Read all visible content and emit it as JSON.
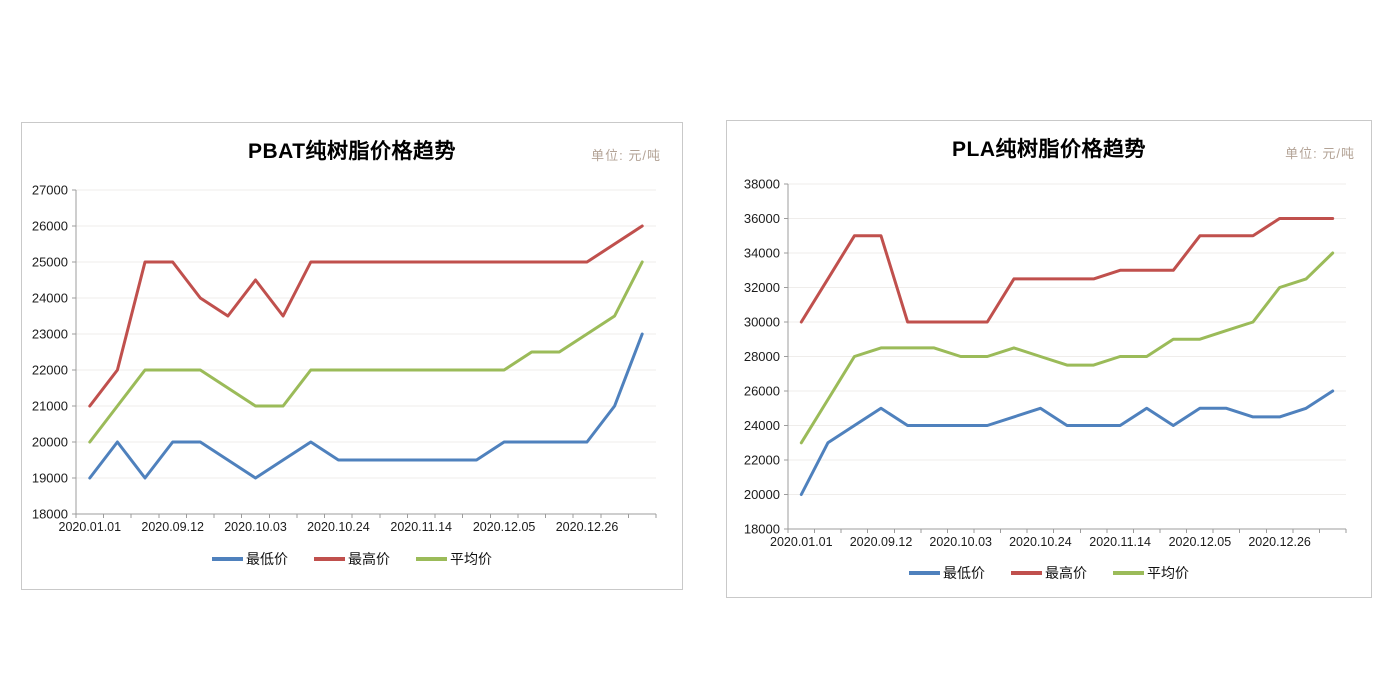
{
  "chart_data": [
    {
      "type": "line",
      "title": "PBAT纯树脂价格趋势",
      "unit": "单位: 元/吨",
      "xlabel": "",
      "ylabel": "",
      "ylim": [
        18000,
        27000
      ],
      "y_step": 1000,
      "grid": true,
      "legend_position": "bottom",
      "n_points": 21,
      "categories": [
        "2020.01.01",
        "",
        "",
        "2020.09.12",
        "",
        "",
        "2020.10.03",
        "",
        "",
        "2020.10.24",
        "",
        "",
        "2020.11.14",
        "",
        "",
        "2020.12.05",
        "",
        "",
        "2020.12.26",
        "",
        ""
      ],
      "x_axis_labels_shown": [
        "2020.01.01",
        "2020.09.12",
        "2020.10.03",
        "2020.10.24",
        "2020.11.14",
        "2020.12.05",
        "2020.12.26"
      ],
      "series": [
        {
          "name": "最低价",
          "color": "#4F81BD",
          "values": [
            19000,
            20000,
            19000,
            20000,
            20000,
            19500,
            19000,
            19500,
            20000,
            19500,
            19500,
            19500,
            19500,
            19500,
            19500,
            20000,
            20000,
            20000,
            20000,
            21000,
            23000
          ]
        },
        {
          "name": "最高价",
          "color": "#C0504D",
          "values": [
            21000,
            22000,
            25000,
            25000,
            24000,
            23500,
            24500,
            23500,
            25000,
            25000,
            25000,
            25000,
            25000,
            25000,
            25000,
            25000,
            25000,
            25000,
            25000,
            25500,
            26000
          ]
        },
        {
          "name": "平均价",
          "color": "#9BBB59",
          "values": [
            20000,
            21000,
            22000,
            22000,
            22000,
            21500,
            21000,
            21000,
            22000,
            22000,
            22000,
            22000,
            22000,
            22000,
            22000,
            22000,
            22500,
            22500,
            23000,
            23500,
            25000
          ]
        }
      ]
    },
    {
      "type": "line",
      "title": "PLA纯树脂价格趋势",
      "unit": "单位: 元/吨",
      "xlabel": "",
      "ylabel": "",
      "ylim": [
        18000,
        38000
      ],
      "y_step": 2000,
      "grid": true,
      "legend_position": "bottom",
      "n_points": 21,
      "categories": [
        "2020.01.01",
        "",
        "",
        "2020.09.12",
        "",
        "",
        "2020.10.03",
        "",
        "",
        "2020.10.24",
        "",
        "",
        "2020.11.14",
        "",
        "",
        "2020.12.05",
        "",
        "",
        "2020.12.26",
        "",
        ""
      ],
      "x_axis_labels_shown": [
        "2020.01.01",
        "2020.09.12",
        "2020.10.03",
        "2020.10.24",
        "2020.11.14",
        "2020.12.05",
        "2020.12.26"
      ],
      "series": [
        {
          "name": "最低价",
          "color": "#4F81BD",
          "values": [
            20000,
            23000,
            24000,
            25000,
            24000,
            24000,
            24000,
            24000,
            24500,
            25000,
            24000,
            24000,
            24000,
            25000,
            24000,
            25000,
            25000,
            24500,
            24500,
            25000,
            26000
          ]
        },
        {
          "name": "最高价",
          "color": "#C0504D",
          "values": [
            30000,
            32500,
            35000,
            35000,
            30000,
            30000,
            30000,
            30000,
            32500,
            32500,
            32500,
            32500,
            33000,
            33000,
            33000,
            35000,
            35000,
            35000,
            36000,
            36000,
            36000
          ]
        },
        {
          "name": "平均价",
          "color": "#9BBB59",
          "values": [
            23000,
            25500,
            28000,
            28500,
            28500,
            28500,
            28000,
            28000,
            28500,
            28000,
            27500,
            27500,
            28000,
            28000,
            29000,
            29000,
            29500,
            30000,
            32000,
            32500,
            34000
          ]
        }
      ]
    }
  ]
}
